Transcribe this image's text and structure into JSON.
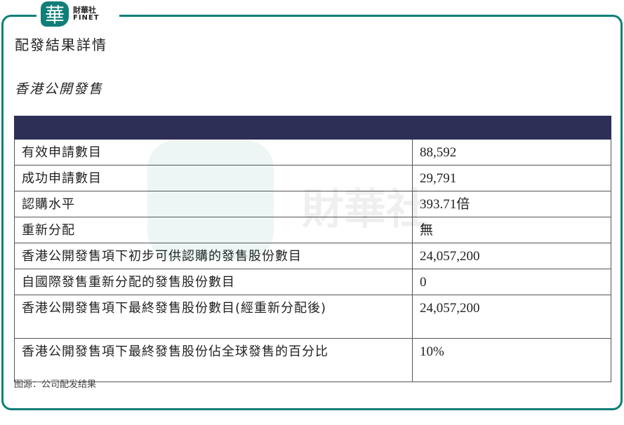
{
  "brand": {
    "logo_glyph": "華",
    "name_cn": "財華社",
    "name_en": "FINET",
    "color": "#0f7f78"
  },
  "title": "配發結果詳情",
  "subtitle": "香港公開發售",
  "table": {
    "header_color": "#2d2f57",
    "rows": [
      {
        "label": "有效申請數目",
        "value": "88,592"
      },
      {
        "label": "成功申請數目",
        "value": "29,791"
      },
      {
        "label": "認購水平",
        "value": "393.71倍"
      },
      {
        "label": "重新分配",
        "value": "無"
      },
      {
        "label": "香港公開發售項下初步可供認購的發售股份數目",
        "value": "24,057,200"
      },
      {
        "label": "自國際發售重新分配的發售股份數目",
        "value": "0"
      },
      {
        "label": "香港公開發售項下最終發售股份數目(經重新分配後)",
        "value": "24,057,200"
      },
      {
        "label": "香港公開發售項下最終發售股份佔全球發售的百分比",
        "value": "10%"
      }
    ]
  },
  "source": "图源：公司配发结果"
}
